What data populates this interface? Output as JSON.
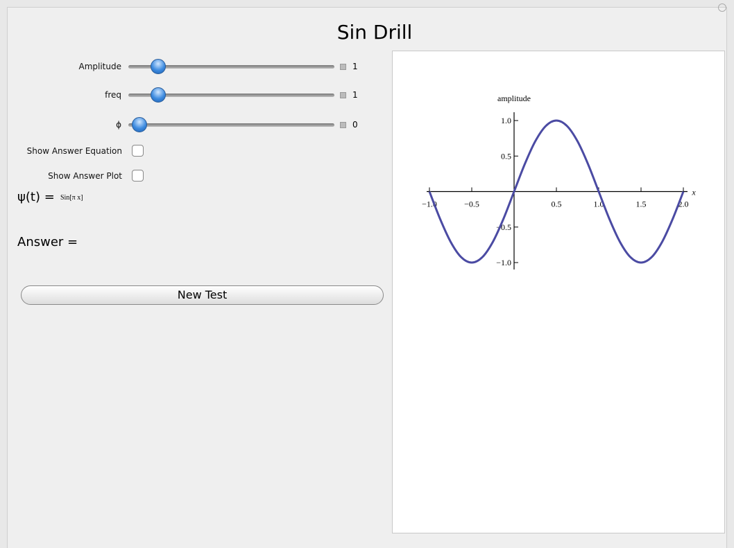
{
  "title": "Sin Drill",
  "controls": {
    "sliders": [
      {
        "label": "Amplitude",
        "value": 1
      },
      {
        "label": "freq",
        "value": 1
      },
      {
        "label": "ϕ",
        "value": 0
      }
    ],
    "checkboxes": [
      {
        "label": "Show Answer Equation"
      },
      {
        "label": "Show Answer Plot"
      }
    ],
    "equation": {
      "label": "ψ(t) =",
      "value": "Sin[π x]"
    },
    "answer": {
      "label": "Answer ="
    },
    "button": {
      "label": "New Test"
    }
  },
  "chart_data": {
    "type": "line",
    "ylabel": "amplitude",
    "xlabel": "x",
    "x": [
      -1,
      -0.875,
      -0.75,
      -0.625,
      -0.5,
      -0.375,
      -0.25,
      -0.125,
      0,
      0.125,
      0.25,
      0.375,
      0.5,
      0.625,
      0.75,
      0.875,
      1,
      1.125,
      1.25,
      1.375,
      1.5,
      1.625,
      1.75,
      1.875,
      2
    ],
    "series": [
      {
        "color": "#4b4ba3",
        "values": [
          0,
          -0.383,
          -0.707,
          -0.924,
          -1,
          -0.924,
          -0.707,
          -0.383,
          0,
          0.383,
          0.707,
          0.924,
          1,
          0.924,
          0.707,
          0.383,
          0,
          -0.383,
          -0.707,
          -0.924,
          -1,
          -0.924,
          -0.707,
          -0.383,
          0
        ]
      }
    ],
    "xlim": [
      -1,
      2
    ],
    "ylim": [
      -1,
      1
    ],
    "xticks": [
      {
        "value": -1,
        "label": "−1.0"
      },
      {
        "value": -0.5,
        "label": "−0.5"
      },
      0.5,
      {
        "value": 1,
        "label": "1.0"
      },
      1.5,
      {
        "value": 2,
        "label": "2.0"
      }
    ],
    "yticks": [
      {
        "value": -1,
        "label": "−1.0"
      },
      {
        "value": -0.5,
        "label": "−0.5"
      },
      0.5,
      {
        "value": 1,
        "label": "1.0"
      }
    ]
  }
}
